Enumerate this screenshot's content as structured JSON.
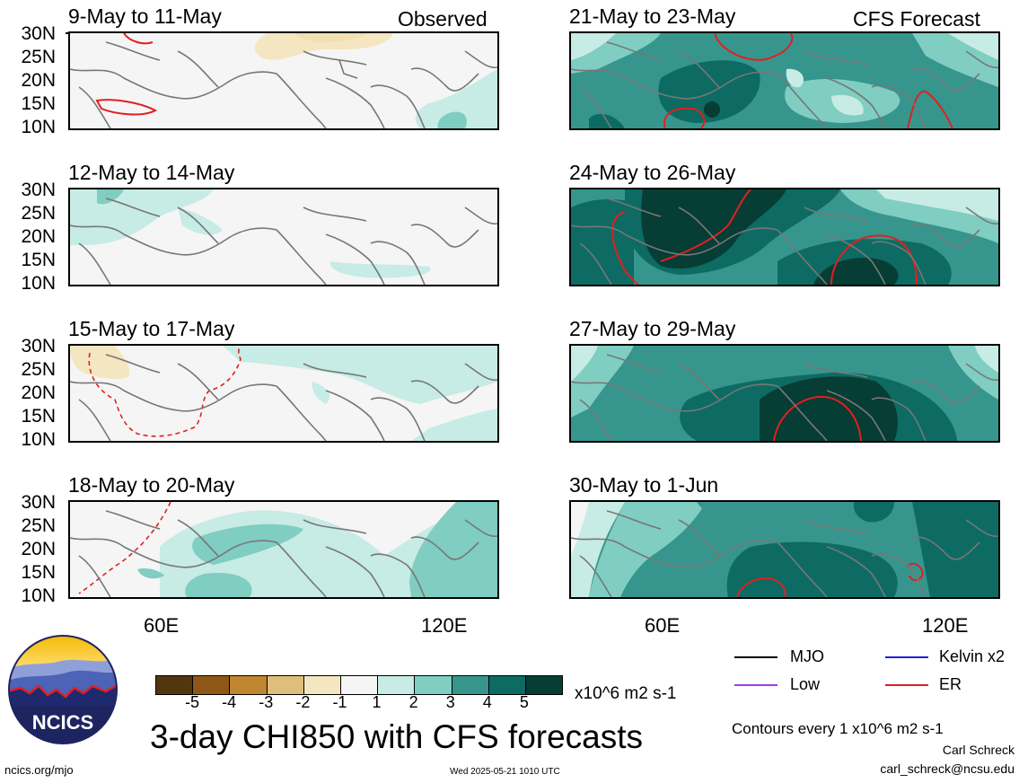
{
  "header": {
    "left_label": "Observed",
    "right_label": "CFS Forecast"
  },
  "panels": {
    "p1": "9-May to 11-May",
    "p2": "12-May to 14-May",
    "p3": "15-May to 17-May",
    "p4": "18-May to 20-May",
    "p5": "21-May to 23-May",
    "p6": "24-May to 26-May",
    "p7": "27-May to 29-May",
    "p8": "30-May to 1-Jun"
  },
  "lat_labels": [
    "30N",
    "25N",
    "20N",
    "15N",
    "10N"
  ],
  "lon_labels": [
    "60E",
    "120E"
  ],
  "colorbar": {
    "colors": [
      "#533510",
      "#8e5718",
      "#bf852f",
      "#dfbe7b",
      "#f4e6c0",
      "#f5f5f5",
      "#c7ebe5",
      "#80cdc1",
      "#36968d",
      "#0d6b63",
      "#063d35"
    ],
    "ticks": [
      "-5",
      "-4",
      "-3",
      "-2",
      "-1",
      "1",
      "2",
      "3",
      "4",
      "5"
    ],
    "units": "x10^6 m2 s-1"
  },
  "legend": {
    "items": [
      {
        "label": "MJO",
        "color": "#000000"
      },
      {
        "label": "Kelvin x2",
        "color": "#1f1fe0"
      },
      {
        "label": "Low",
        "color": "#a040e0"
      },
      {
        "label": "ER",
        "color": "#e02020"
      }
    ],
    "contour_note": "Contours every 1 x10^6 m2 s-1",
    "author": "Carl Schreck",
    "email": "carl_schreck@ncsu.edu"
  },
  "footer": {
    "main_title": "3-day CHI850 with CFS forecasts",
    "url": "ncics.org/mjo",
    "timestamp": "Wed 2025-05-21 1010 UTC",
    "logo_text": "NCICS"
  }
}
